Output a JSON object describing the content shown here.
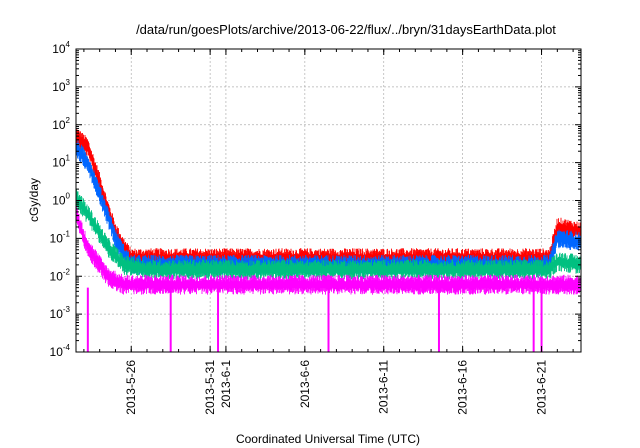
{
  "chart_data": {
    "type": "line",
    "title": "/data/run/goesPlots/archive/2013-06-22/flux/../bryn/31daysEarthData.plot",
    "xlabel": "Coordinated Universal Time (UTC)",
    "ylabel": "cGy/day",
    "yscale": "log",
    "ylim": [
      0.0001,
      10000
    ],
    "xlim": [
      "2013-05-22T12:00",
      "2013-06-23T12:00"
    ],
    "grid": true,
    "y_ticks": [
      {
        "value": 0.0001,
        "base": "10",
        "exp": "-4"
      },
      {
        "value": 0.001,
        "base": "10",
        "exp": "-3"
      },
      {
        "value": 0.01,
        "base": "10",
        "exp": "-2"
      },
      {
        "value": 0.1,
        "base": "10",
        "exp": "-1"
      },
      {
        "value": 1,
        "base": "10",
        "exp": "0"
      },
      {
        "value": 10,
        "base": "10",
        "exp": "1"
      },
      {
        "value": 100,
        "base": "10",
        "exp": "2"
      },
      {
        "value": 1000,
        "base": "10",
        "exp": "3"
      },
      {
        "value": 10000,
        "base": "10",
        "exp": "4"
      }
    ],
    "x_ticks": [
      "2013-5-26",
      "2013-5-31",
      "2013-6-1",
      "2013-6-6",
      "2013-6-11",
      "2013-6-16",
      "2013-6-21"
    ],
    "series": [
      {
        "color": "#ff0000",
        "points": [
          [
            "2013-05-22T12:00",
            50
          ],
          [
            "2013-05-23T06:00",
            25
          ],
          [
            "2013-05-24T00:00",
            3
          ],
          [
            "2013-05-24T12:00",
            0.6
          ],
          [
            "2013-05-25T00:00",
            0.15
          ],
          [
            "2013-05-25T12:00",
            0.06
          ],
          [
            "2013-05-26T00:00",
            0.03
          ],
          [
            "2013-05-27T00:00",
            0.03
          ],
          [
            "2013-06-01T00:00",
            0.03
          ],
          [
            "2013-06-10T00:00",
            0.03
          ],
          [
            "2013-06-20T00:00",
            0.03
          ],
          [
            "2013-06-21T12:00",
            0.03
          ],
          [
            "2013-06-22T00:00",
            0.2
          ],
          [
            "2013-06-23T12:00",
            0.15
          ]
        ]
      },
      {
        "color": "#0066ff",
        "points": [
          [
            "2013-05-22T12:00",
            25
          ],
          [
            "2013-05-23T06:00",
            10
          ],
          [
            "2013-05-24T00:00",
            1.5
          ],
          [
            "2013-05-24T12:00",
            0.4
          ],
          [
            "2013-05-25T00:00",
            0.1
          ],
          [
            "2013-05-25T12:00",
            0.04
          ],
          [
            "2013-05-26T00:00",
            0.02
          ],
          [
            "2013-05-27T00:00",
            0.02
          ],
          [
            "2013-06-01T00:00",
            0.02
          ],
          [
            "2013-06-10T00:00",
            0.02
          ],
          [
            "2013-06-20T00:00",
            0.02
          ],
          [
            "2013-06-21T12:00",
            0.02
          ],
          [
            "2013-06-22T00:00",
            0.1
          ],
          [
            "2013-06-23T12:00",
            0.08
          ]
        ]
      },
      {
        "color": "#00c080",
        "points": [
          [
            "2013-05-22T12:00",
            1.2
          ],
          [
            "2013-05-23T12:00",
            0.3
          ],
          [
            "2013-05-24T12:00",
            0.06
          ],
          [
            "2013-05-25T12:00",
            0.02
          ],
          [
            "2013-05-27T00:00",
            0.015
          ],
          [
            "2013-06-10T00:00",
            0.015
          ],
          [
            "2013-06-21T12:00",
            0.015
          ],
          [
            "2013-06-22T00:00",
            0.025
          ],
          [
            "2013-06-23T12:00",
            0.02
          ]
        ]
      },
      {
        "color": "#ff00ff",
        "points": [
          [
            "2013-05-22T12:00",
            0.5
          ],
          [
            "2013-05-23T00:00",
            0.1
          ],
          [
            "2013-05-23T12:00",
            0.04
          ],
          [
            "2013-05-24T12:00",
            0.01
          ],
          [
            "2013-05-25T12:00",
            0.006
          ],
          [
            "2013-05-27T00:00",
            0.006
          ],
          [
            "2013-06-10T00:00",
            0.006
          ],
          [
            "2013-06-21T12:00",
            0.006
          ],
          [
            "2013-06-23T12:00",
            0.006
          ]
        ],
        "dropouts": [
          "2013-05-23T06:00",
          "2013-05-28T12:00",
          "2013-05-31T12:00",
          "2013-06-07T12:00",
          "2013-06-14T12:00",
          "2013-06-20T12:00",
          "2013-06-21T00:00"
        ]
      }
    ]
  }
}
